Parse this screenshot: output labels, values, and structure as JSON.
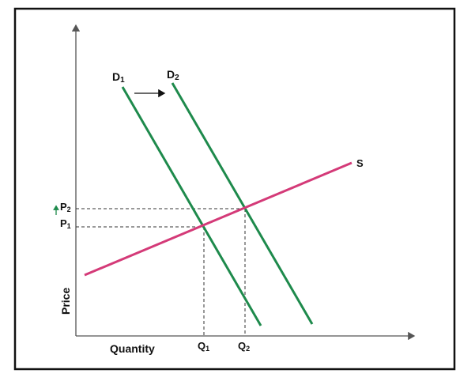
{
  "labels": {
    "d1_main": "D",
    "d1_sub": "1",
    "d2_main": "D",
    "d2_sub": "2",
    "s": "S",
    "p1_main": "P",
    "p1_sub": "1",
    "p2_main": "P",
    "p2_sub": "2",
    "q1_main": "Q",
    "q1_sub": "1",
    "q2_main": "Q",
    "q2_sub": "2",
    "x_axis": "Quantity",
    "y_axis": "Price"
  },
  "colors": {
    "demand": "#1e8a4c",
    "supply": "#d43a78",
    "axis": "#555555",
    "border": "#111111",
    "arrow": "#1e8a4c"
  }
}
